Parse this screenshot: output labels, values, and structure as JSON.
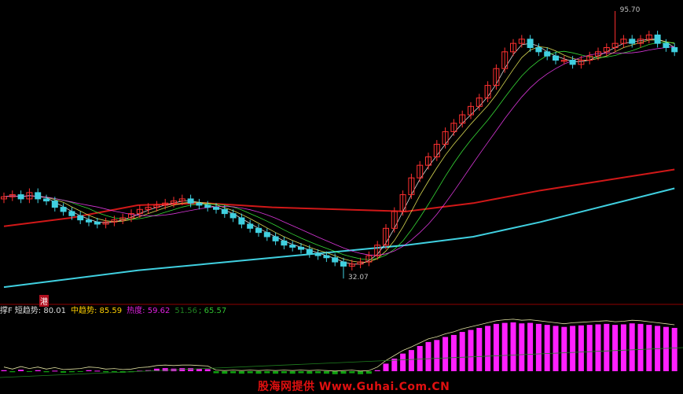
{
  "chart_data": [
    {
      "type": "candlestick",
      "price_range": [
        30,
        97
      ],
      "high_label": "95.70",
      "low_label": "32.07",
      "high_index": 72,
      "low_index": 40,
      "open": [
        51,
        51.5,
        52,
        51,
        52.5,
        51,
        50.5,
        49,
        48,
        47,
        46,
        45.5,
        45,
        45.5,
        46,
        46.5,
        47.5,
        48.5,
        49,
        49.5,
        50,
        50.5,
        51,
        50,
        49.5,
        49,
        48.5,
        47.5,
        46.5,
        45,
        44,
        43,
        42,
        41,
        40,
        39.5,
        39,
        38,
        37.5,
        37,
        36,
        35,
        35.5,
        36,
        37.5,
        40,
        44,
        48,
        52,
        56,
        59,
        61,
        64,
        67,
        69,
        71,
        73,
        75,
        78,
        82,
        86,
        88,
        89,
        87,
        86,
        85,
        84,
        84,
        83,
        84,
        85,
        86,
        87,
        88,
        89,
        88,
        89,
        90,
        88,
        87
      ],
      "close": [
        51.5,
        52,
        51,
        52.5,
        51,
        50.5,
        49,
        48,
        47,
        46,
        45.5,
        45,
        45.5,
        46,
        46.5,
        47.5,
        48.5,
        49,
        49.5,
        50,
        50.5,
        51,
        50,
        49.5,
        49,
        48.5,
        47.5,
        46.5,
        45,
        44,
        43,
        42,
        41,
        40,
        39.5,
        39,
        38,
        37.5,
        37,
        36,
        35,
        35.5,
        36,
        37.5,
        40,
        44,
        48,
        52,
        56,
        59,
        61,
        64,
        67,
        69,
        71,
        73,
        75,
        78,
        82,
        86,
        88,
        89,
        87,
        86,
        85,
        84,
        84,
        83,
        84,
        85,
        86,
        87,
        88,
        89,
        88,
        89,
        90,
        88,
        87,
        86
      ],
      "ma_long": [
        44.5,
        46.5,
        49.5,
        50,
        49,
        48.5,
        48,
        50,
        53,
        55.5,
        58
      ],
      "ma_base": [
        30,
        32,
        34,
        35.5,
        37,
        38.5,
        40,
        42,
        45.5,
        49.5,
        53.5
      ],
      "up_color": "#ff3030",
      "down_color": "#40d0e0"
    },
    {
      "type": "bar",
      "range": [
        -10,
        100
      ],
      "values": [
        2,
        -2,
        3,
        -1,
        2,
        -2,
        1,
        -3,
        -2,
        -1,
        2,
        1,
        -2,
        -1,
        -3,
        -2,
        1,
        2,
        5,
        6,
        5,
        6,
        6,
        5,
        4,
        -4,
        -5,
        -4,
        -5,
        -4,
        -5,
        -4,
        -5,
        -4,
        -5,
        -4,
        -5,
        -4,
        -5,
        -6,
        -5,
        -4,
        -6,
        -5,
        2,
        15,
        25,
        35,
        42,
        50,
        58,
        62,
        68,
        72,
        78,
        82,
        86,
        90,
        94,
        96,
        97,
        95,
        96,
        94,
        92,
        90,
        88,
        90,
        91,
        92,
        93,
        94,
        92,
        93,
        95,
        94,
        92,
        90,
        88,
        86
      ],
      "pos_color": "#ff20ff",
      "neg_color": "#10a010"
    }
  ],
  "indicator": {
    "tag": "港",
    "name": "撑F",
    "short_label": "短趋势",
    "short_value": "80.01",
    "mid_label": "中趋势",
    "mid_value": "85.59",
    "heat_label": "热度",
    "heat_value": "59.62",
    "v1": "51.56",
    "v2": "65.57"
  },
  "watermark": "股海网提供 Www.Guhai.Com.CN"
}
